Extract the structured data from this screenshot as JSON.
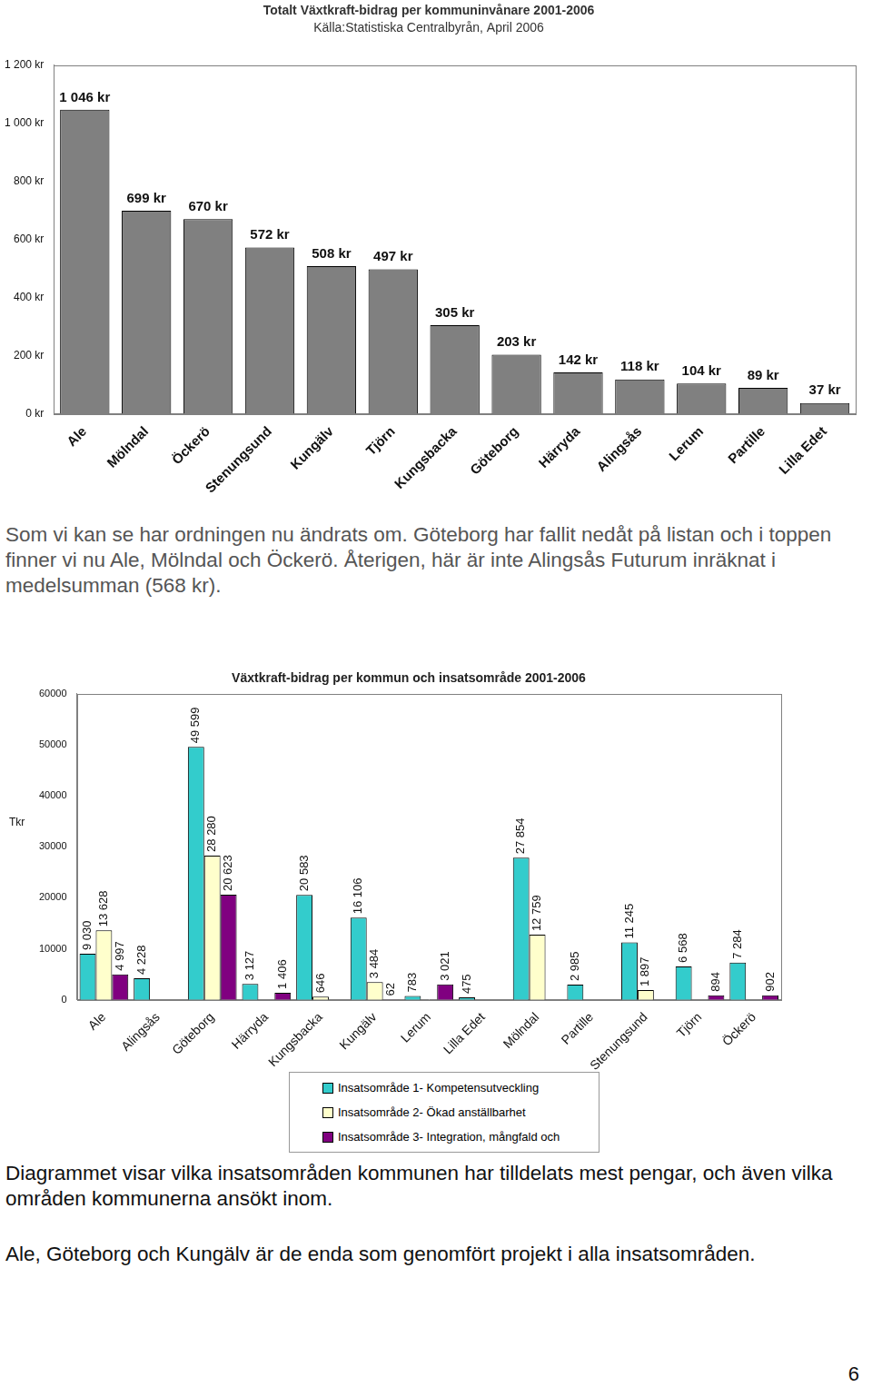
{
  "chart_data": [
    {
      "type": "bar",
      "title": "Totalt Växtkraft-bidrag per kommuninvånare 2001-2006",
      "subtitle": "Källa:Statistiska Centralbyrån, April 2006",
      "categories": [
        "Ale",
        "Mölndal",
        "Öckerö",
        "Stenungsund",
        "Kungälv",
        "Tjörn",
        "Kungsbacka",
        "Göteborg",
        "Härryda",
        "Alingsås",
        "Lerum",
        "Partille",
        "Lilla Edet"
      ],
      "values": [
        1046,
        699,
        670,
        572,
        508,
        497,
        305,
        203,
        142,
        118,
        104,
        89,
        37
      ],
      "value_labels": [
        "1 046 kr",
        "699 kr",
        "670 kr",
        "572 kr",
        "508 kr",
        "497 kr",
        "305 kr",
        "203 kr",
        "142 kr",
        "118 kr",
        "104 kr",
        "89 kr",
        "37 kr"
      ],
      "data_labels": true,
      "color": "#808080",
      "ylim": [
        0,
        1200
      ],
      "yticks": [
        {
          "value": 0,
          "label": "0 kr"
        },
        {
          "value": 200,
          "label": "200 kr"
        },
        {
          "value": 400,
          "label": "400 kr"
        },
        {
          "value": 600,
          "label": "600 kr"
        },
        {
          "value": 800,
          "label": "800 kr"
        },
        {
          "value": 1000,
          "label": "1 000 kr"
        },
        {
          "value": 1200,
          "label": "1 200 kr"
        }
      ],
      "grid": false
    },
    {
      "type": "bar",
      "title": "Växtkraft-bidrag per kommun och insatsområde 2001-2006",
      "y_label": "Tkr",
      "categories": [
        "Ale",
        "Alingsås",
        "Göteborg",
        "Härryda",
        "Kungsbacka",
        "Kungälv",
        "Lerum",
        "Lilla Edet",
        "Mölndal",
        "Partille",
        "Stenungsund",
        "Tjörn",
        "Öckerö"
      ],
      "series": [
        {
          "name": "Insatsområde 1- Kompetensutveckling",
          "color": "#33cccc",
          "values": [
            9030,
            4228,
            49599,
            3127,
            20583,
            16106,
            783,
            475,
            27854,
            2985,
            11245,
            6568,
            7284
          ],
          "value_labels": [
            "9 030",
            "4 228",
            "49 599",
            "3 127",
            "20 583",
            "16 106",
            "783",
            "475",
            "27 854",
            "2 985",
            "11 245",
            "6 568",
            "7 284"
          ]
        },
        {
          "name": "Insatsområde 2- Ökad anställbarhet",
          "color": "#ffffcc",
          "values": [
            13628,
            null,
            28280,
            null,
            646,
            3484,
            null,
            null,
            12759,
            null,
            1897,
            null,
            null
          ],
          "value_labels": [
            "13 628",
            null,
            "28 280",
            null,
            "646",
            "3 484",
            null,
            null,
            "12 759",
            null,
            "1 897",
            null,
            null
          ]
        },
        {
          "name": "Insatsområde 3- Integration, mångfald och",
          "color": "#800080",
          "values": [
            4997,
            null,
            20623,
            1406,
            null,
            62,
            3021,
            null,
            null,
            null,
            null,
            894,
            902
          ],
          "value_labels": [
            "4 997",
            null,
            "20 623",
            "1 406",
            null,
            "62",
            "3 021",
            null,
            null,
            null,
            null,
            "894",
            "902"
          ]
        }
      ],
      "data_labels": true,
      "legend": "bottom",
      "ylim": [
        0,
        60000
      ],
      "yticks": [
        0,
        10000,
        20000,
        30000,
        40000,
        50000,
        60000
      ],
      "grid": false
    }
  ],
  "document": {
    "paragraphs": [
      "Som vi kan se har ordningen nu ändrats om. Göteborg har fallit nedåt på listan och i toppen finner vi nu Ale, Mölndal och Öckerö. Återigen, här är inte Alingsås Futurum inräknat i medelsumman (568 kr).",
      "Diagrammet visar vilka insatsområden kommunen har tilldelats mest pengar, och även vilka områden kommunerna ansökt inom.",
      "Ale, Göteborg och Kungälv är de enda som genomfört projekt i alla insatsområden."
    ],
    "page_number": 6
  }
}
